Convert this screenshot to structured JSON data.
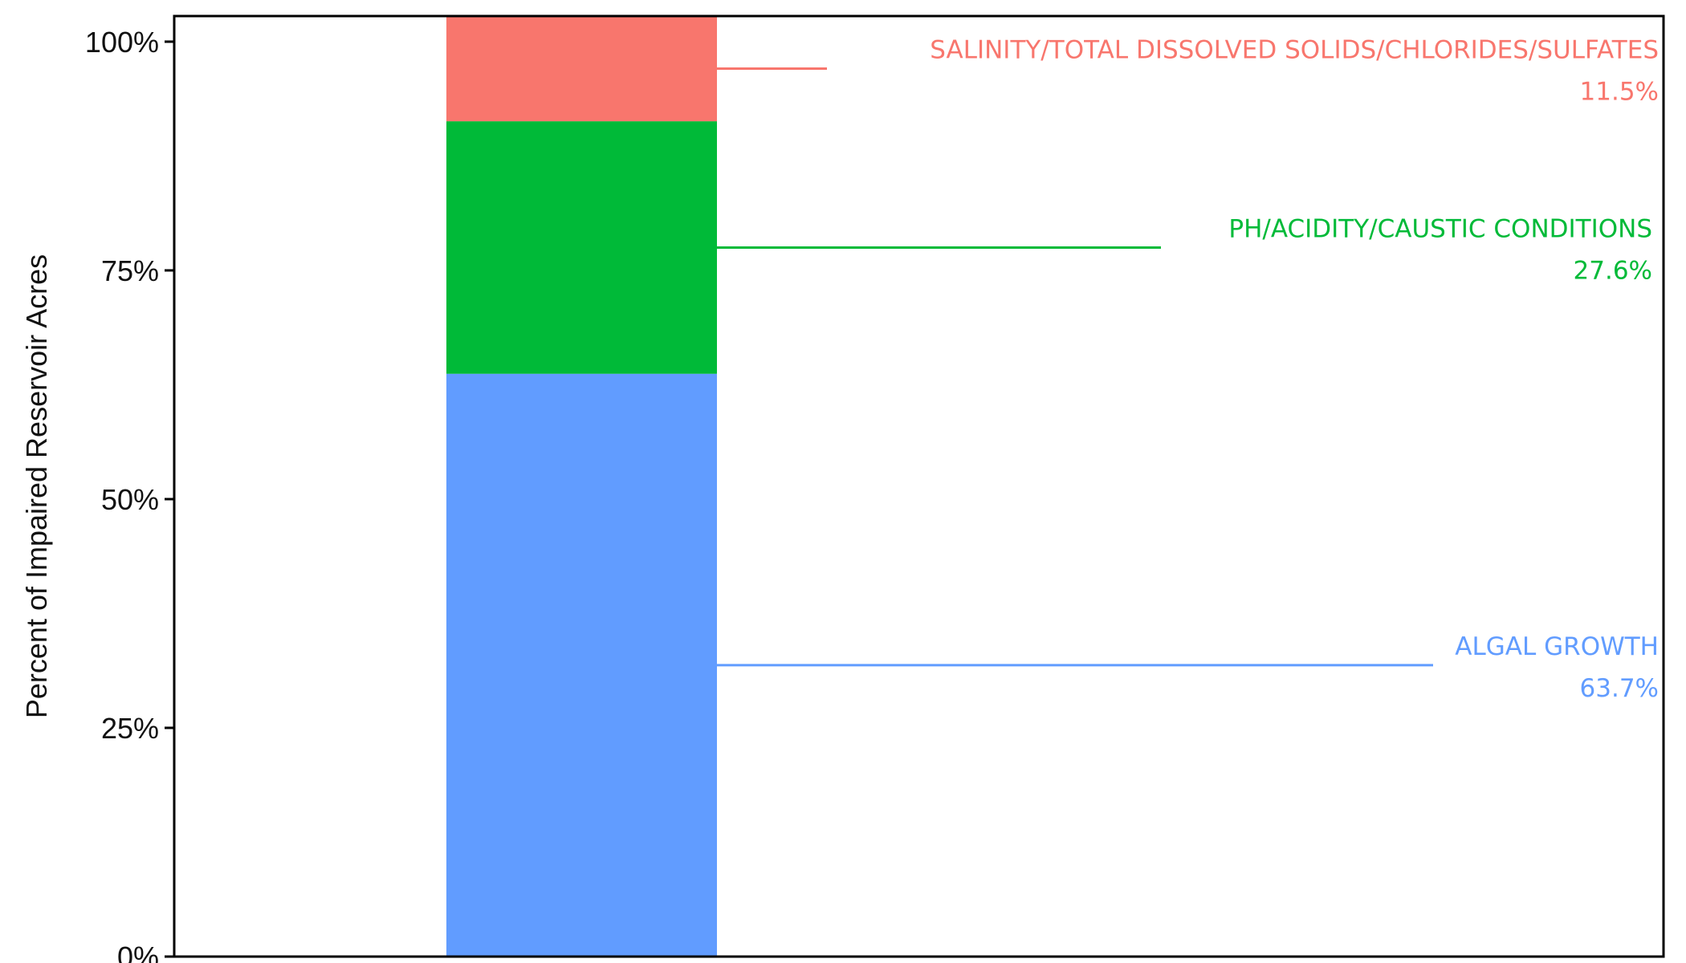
{
  "chart_data": {
    "type": "bar",
    "stacked": true,
    "categories": [
      ""
    ],
    "ylabel": "Percent of Impaired Reservoir Acres",
    "ylim": [
      0,
      102.8
    ],
    "yticks": [
      0,
      25,
      50,
      75,
      100
    ],
    "ytick_labels": [
      "0%",
      "25%",
      "50%",
      "75%",
      "100%"
    ],
    "grid": false,
    "legend": "none",
    "series": [
      {
        "name": "ALGAL GROWTH",
        "value": 63.7,
        "value_label": "63.7%",
        "color": "#619cff"
      },
      {
        "name": "PH/ACIDITY/CAUSTIC CONDITIONS",
        "value": 27.6,
        "value_label": "27.6%",
        "color": "#00ba38"
      },
      {
        "name": "SALINITY/TOTAL DISSOLVED SOLIDS/CHLORIDES/SULFATES",
        "value": 11.5,
        "value_label": "11.5%",
        "color": "#f8766d"
      }
    ]
  }
}
